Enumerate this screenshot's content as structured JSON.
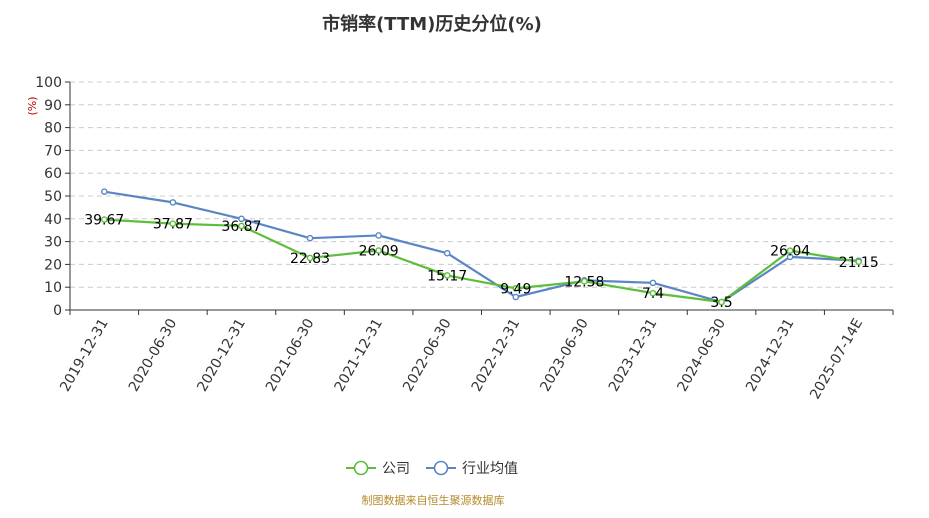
{
  "chart_data": {
    "type": "line",
    "title": "市销率(TTM)历史分位(%)",
    "ylabel": "(%)",
    "ylim": [
      0,
      100
    ],
    "yticks": [
      0,
      10,
      20,
      30,
      40,
      50,
      60,
      70,
      80,
      90,
      100
    ],
    "grid": true,
    "legend_position": "bottom-center",
    "categories": [
      "2019-12-31",
      "2020-06-30",
      "2020-12-31",
      "2021-06-30",
      "2021-12-31",
      "2022-06-30",
      "2022-12-31",
      "2023-06-30",
      "2023-12-31",
      "2024-06-30",
      "2024-12-31",
      "2025-07-14E"
    ],
    "series": [
      {
        "name": "公司",
        "color": "#5dbe3b",
        "values": [
          39.67,
          37.87,
          36.87,
          22.83,
          26.09,
          15.17,
          9.49,
          12.58,
          7.4,
          3.5,
          26.04,
          21.15
        ],
        "labels": [
          "39.67",
          "37.87",
          "36.87",
          "22.83",
          "26.09",
          "15.17",
          "9.49",
          "12.58",
          "7.4",
          "3.5",
          "26.04",
          "21.15"
        ]
      },
      {
        "name": "行业均值",
        "color": "#5b86c5",
        "values": [
          51.9,
          47.2,
          40.0,
          31.5,
          32.7,
          24.9,
          5.7,
          13.0,
          11.9,
          3.5,
          23.3,
          21.6
        ]
      }
    ],
    "source": "制图数据来自恒生聚源数据库"
  }
}
